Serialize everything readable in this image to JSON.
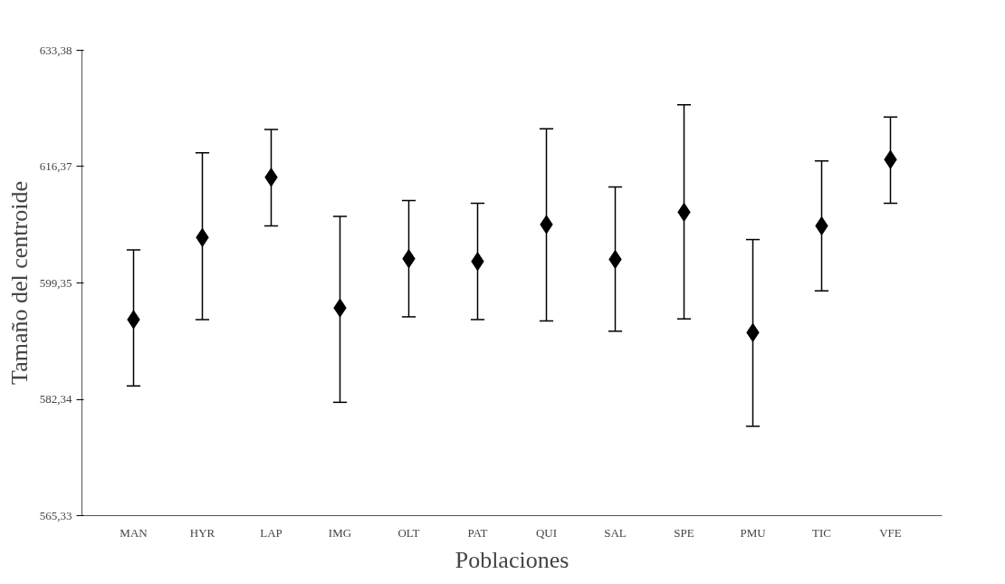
{
  "chart_data": {
    "type": "scatter",
    "xlabel": "Poblaciones",
    "ylabel": "Tamaño del centroide",
    "categories": [
      "MAN",
      "HYR",
      "LAP",
      "IMG",
      "OLT",
      "PAT",
      "QUI",
      "SAL",
      "SPE",
      "PMU",
      "TIC",
      "VFE"
    ],
    "values": [
      594.0,
      606.0,
      614.8,
      595.7,
      602.9,
      602.5,
      607.9,
      602.8,
      609.7,
      592.1,
      607.7,
      617.4
    ],
    "errors": [
      [
        584.3,
        604.2
      ],
      [
        594.0,
        618.4
      ],
      [
        607.7,
        621.8
      ],
      [
        581.9,
        609.1
      ],
      [
        594.4,
        611.4
      ],
      [
        594.0,
        611.0
      ],
      [
        593.8,
        621.9
      ],
      [
        592.3,
        613.4
      ],
      [
        594.1,
        625.4
      ],
      [
        578.4,
        605.7
      ],
      [
        598.2,
        617.2
      ],
      [
        611.0,
        623.6
      ]
    ],
    "color": "#000000",
    "marker": "diamond",
    "grid": false,
    "ylim": [
      565.33,
      633.38
    ],
    "yticks": [
      {
        "value": 565.33,
        "label": "565,33"
      },
      {
        "value": 582.34,
        "label": "582,34"
      },
      {
        "value": 599.35,
        "label": "599,35"
      },
      {
        "value": 616.37,
        "label": "616,37"
      },
      {
        "value": 633.38,
        "label": "633,38"
      }
    ]
  }
}
